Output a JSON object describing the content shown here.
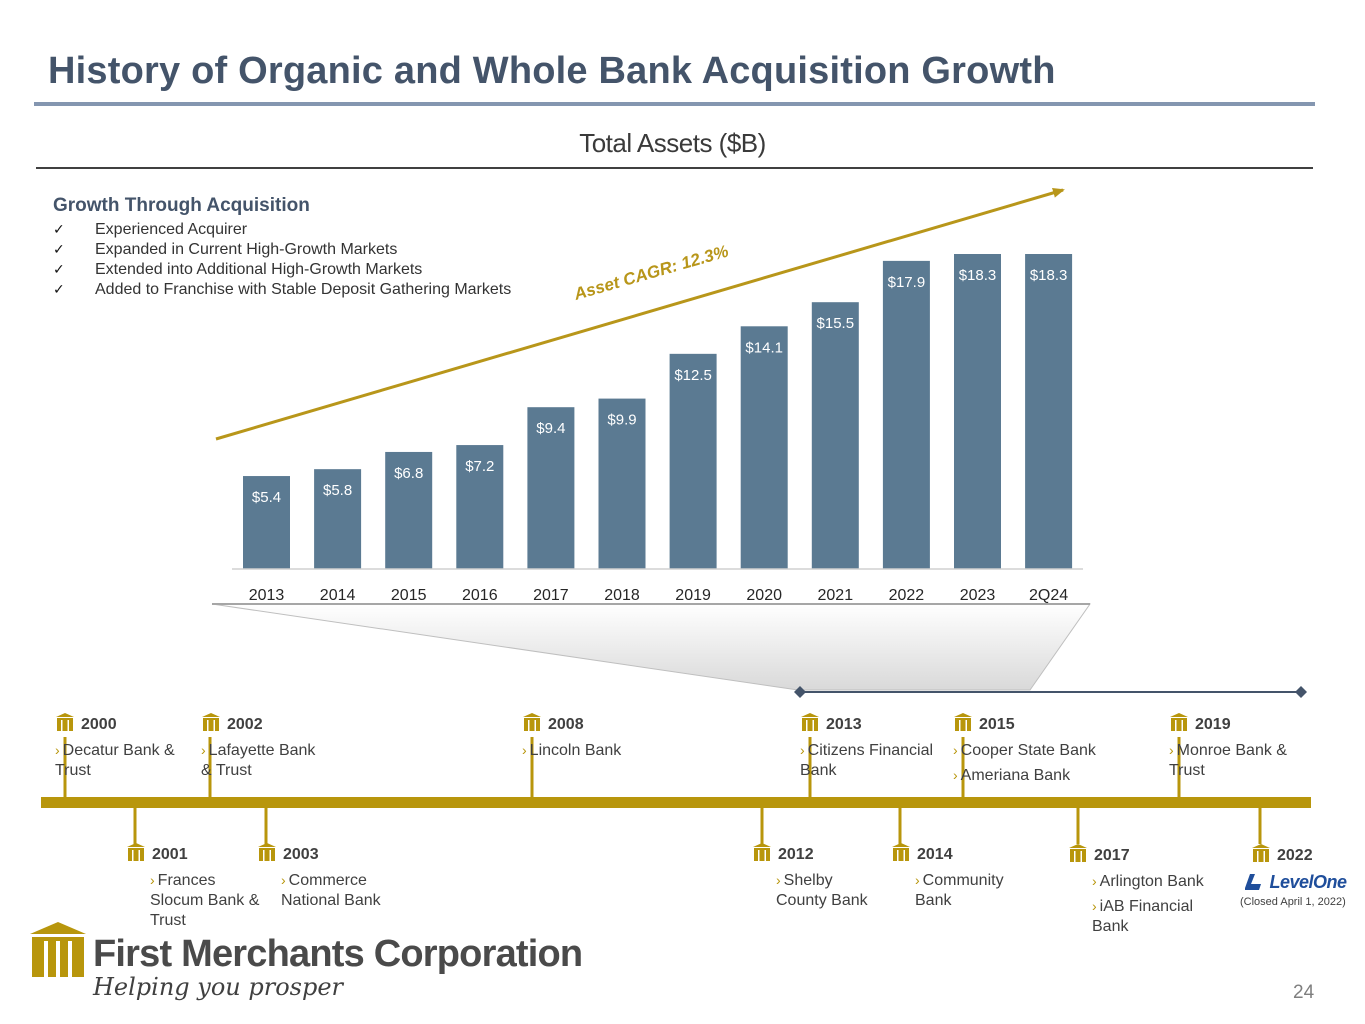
{
  "title": "History of Organic and Whole Bank Acquisition Growth",
  "growth": {
    "heading": "Growth Through Acquisition",
    "check_mark": "✓",
    "items": [
      "Experienced Acquirer",
      "Expanded in Current High-Growth Markets",
      "Extended into Additional High-Growth Markets",
      "Added to Franchise with Stable Deposit Gathering Markets"
    ]
  },
  "chart_data": {
    "type": "bar",
    "title": "Total Assets ($B)",
    "categories": [
      "2013",
      "2014",
      "2015",
      "2016",
      "2017",
      "2018",
      "2019",
      "2020",
      "2021",
      "2022",
      "2023",
      "2Q24"
    ],
    "values": [
      5.4,
      5.8,
      6.8,
      7.2,
      9.4,
      9.9,
      12.5,
      14.1,
      15.5,
      17.9,
      18.3,
      18.3
    ],
    "data_labels": [
      "$5.4",
      "$5.8",
      "$6.8",
      "$7.2",
      "$9.4",
      "$9.9",
      "$12.5",
      "$14.1",
      "$15.5",
      "$17.9",
      "$18.3",
      "$18.3"
    ],
    "annotation": "Asset CAGR: 12.3%",
    "xlabel": "",
    "ylabel": "",
    "ylim": [
      0,
      18.3
    ],
    "bar_color": "#5b7a92",
    "trend_color": "#b8961a"
  },
  "timeline": {
    "above": [
      {
        "year": "2000",
        "banks": [
          "Decatur Bank & Trust"
        ]
      },
      {
        "year": "2002",
        "banks": [
          "Lafayette Bank & Trust"
        ]
      },
      {
        "year": "2008",
        "banks": [
          "Lincoln Bank"
        ]
      },
      {
        "year": "2013",
        "banks": [
          "Citizens Financial Bank"
        ]
      },
      {
        "year": "2015",
        "banks": [
          "Cooper State Bank",
          "Ameriana Bank"
        ]
      },
      {
        "year": "2019",
        "banks": [
          "Monroe Bank & Trust"
        ]
      }
    ],
    "below": [
      {
        "year": "2001",
        "banks": [
          "Frances Slocum Bank & Trust"
        ]
      },
      {
        "year": "2003",
        "banks": [
          "Commerce National Bank"
        ]
      },
      {
        "year": "2012",
        "banks": [
          "Shelby County Bank"
        ]
      },
      {
        "year": "2014",
        "banks": [
          "Community Bank"
        ]
      },
      {
        "year": "2017",
        "banks": [
          "Arlington Bank",
          "iAB Financial Bank"
        ]
      },
      {
        "year": "2022",
        "banks": []
      }
    ],
    "chevron": "›",
    "levelone_logo": "LevelOne",
    "levelone_note": "(Closed April 1, 2022)",
    "accent_color": "#b8960c"
  },
  "footer": {
    "company": "First Merchants Corporation",
    "tagline": "Helping you prosper",
    "page_number": "24"
  }
}
